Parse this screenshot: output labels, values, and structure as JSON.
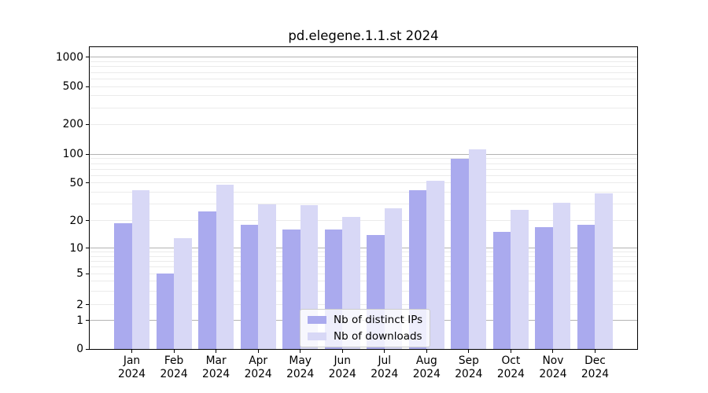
{
  "figure": {
    "title": "pd.elegene.1.1.st 2024"
  },
  "legend": {
    "items": [
      {
        "label": "Nb of distinct IPs",
        "color": "#aaaaee"
      },
      {
        "label": "Nb of downloads",
        "color": "#d8d8f6"
      }
    ]
  },
  "chart_data": {
    "type": "bar",
    "title": "pd.elegene.1.1.st 2024",
    "xlabel": "",
    "ylabel": "",
    "categories": [
      "Jan",
      "Feb",
      "Mar",
      "Apr",
      "May",
      "Jun",
      "Jul",
      "Aug",
      "Sep",
      "Oct",
      "Nov",
      "Dec"
    ],
    "year": "2024",
    "series": [
      {
        "name": "Nb of distinct IPs",
        "color": "#aaaaee",
        "values": [
          19,
          5,
          25,
          18,
          16,
          16,
          14,
          42,
          90,
          15,
          17,
          18
        ]
      },
      {
        "name": "Nb of downloads",
        "color": "#d8d8f6",
        "values": [
          42,
          13,
          48,
          30,
          29,
          22,
          27,
          53,
          112,
          26,
          31,
          39
        ]
      }
    ],
    "yticks": [
      0,
      1,
      2,
      5,
      10,
      20,
      50,
      100,
      200,
      500,
      1000
    ],
    "grid_major": [
      1,
      10,
      100,
      1000
    ],
    "grid_minor": [
      2,
      3,
      4,
      5,
      6,
      7,
      8,
      9,
      20,
      30,
      40,
      50,
      60,
      70,
      80,
      90,
      200,
      300,
      400,
      500,
      600,
      700,
      800,
      900
    ],
    "scale_anchors": [
      [
        0,
        1.0
      ],
      [
        1,
        0.9055
      ],
      [
        2,
        0.853
      ],
      [
        5,
        0.751
      ],
      [
        10,
        0.666
      ],
      [
        20,
        0.5755
      ],
      [
        50,
        0.4497
      ],
      [
        100,
        0.355
      ],
      [
        200,
        0.256
      ],
      [
        500,
        0.131
      ],
      [
        1000,
        0.0335
      ]
    ],
    "ylim": [
      0,
      1300
    ],
    "grid": true,
    "yscale": "log-like (compressed below 10)",
    "legend_position": "lower center, inside axes"
  }
}
